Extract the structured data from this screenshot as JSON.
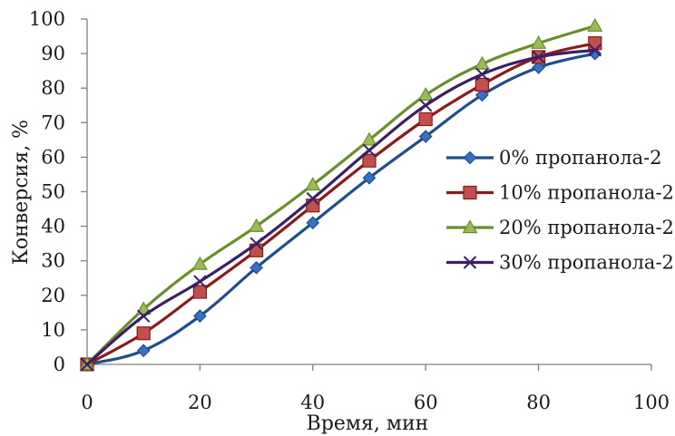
{
  "chart_data": {
    "type": "line",
    "title": "",
    "xlabel": "Время, мин",
    "ylabel": "Конверсия, %",
    "xlim": [
      0,
      100
    ],
    "ylim": [
      0,
      100
    ],
    "xticks": [
      0,
      20,
      40,
      60,
      80,
      100
    ],
    "yticks": [
      0,
      10,
      20,
      30,
      40,
      50,
      60,
      70,
      80,
      90,
      100
    ],
    "x_tick_labels": [
      "0",
      "20",
      "40",
      "60",
      "80",
      "100"
    ],
    "y_tick_labels": [
      "0",
      "10",
      "20",
      "30",
      "40",
      "50",
      "60",
      "70",
      "80",
      "90",
      "100"
    ],
    "grid": false,
    "legend_position": "right",
    "smooth": true,
    "x": [
      0,
      10,
      20,
      30,
      40,
      50,
      60,
      70,
      80,
      90
    ],
    "series": [
      {
        "name": "0% пропанола-2",
        "values": [
          0,
          4,
          14,
          28,
          41,
          54,
          66,
          78,
          86,
          90
        ],
        "color": "#1f4e8c",
        "marker": "diamond",
        "marker_fill": "#3b6fc1"
      },
      {
        "name": "10% пропанола-2",
        "values": [
          0,
          9,
          21,
          33,
          46,
          59,
          71,
          81,
          89,
          93
        ],
        "color": "#8b1a1a",
        "marker": "square",
        "marker_fill": "#c0504d"
      },
      {
        "name": "20% пропанола-2",
        "values": [
          0,
          16,
          29,
          40,
          52,
          65,
          78,
          87,
          93,
          98
        ],
        "color": "#6a8f2a",
        "marker": "triangle",
        "marker_fill": "#9bbb59"
      },
      {
        "name": "30% пропанола-2",
        "values": [
          0,
          14,
          24,
          35,
          48,
          62,
          75,
          84,
          89,
          91
        ],
        "color": "#3d1f66",
        "marker": "x",
        "marker_fill": "#3d1f66"
      }
    ]
  }
}
